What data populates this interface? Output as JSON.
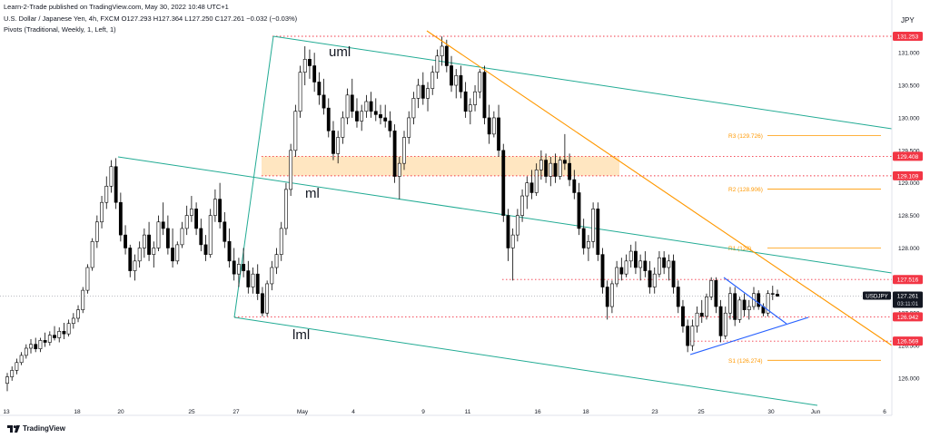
{
  "header": {
    "published": "Learn-2-Trade published on TradingView.com, May 30, 2022 10:48 UTC+1",
    "symbol": "U.S. Dollar / Japanese Yen, 4h, FXCM",
    "ohlc": "O127.293 H127.364 L127.250 C127.261",
    "change": "−0.032 (−0.03%)",
    "indicator": "Pivots (Traditional, Weekly, 1, Left, 1)"
  },
  "currency": "JPY",
  "brand": "TradingView",
  "colors": {
    "up": "#ffffff",
    "down": "#000000",
    "pitchfork": "#22ab94",
    "resistance": "#ff9800",
    "triangle": "#2962ff",
    "level": "#f23645",
    "zone": "#ffe0b2",
    "pivot": "#ff9800"
  },
  "chart_data": {
    "type": "candlestick",
    "symbol": "USDJPY",
    "ylim": [
      125.72,
      131.55
    ],
    "y_ticks": [
      "126.000",
      "126.500",
      "127.000",
      "127.500",
      "128.000",
      "128.500",
      "129.000",
      "129.500",
      "130.000",
      "130.500",
      "131.000"
    ],
    "x_ticks": [
      "13",
      "18",
      "20",
      "25",
      "27",
      "May",
      "4",
      "9",
      "11",
      "16",
      "18",
      "23",
      "25",
      "30",
      "Jun",
      "6"
    ],
    "price_tags": [
      "131.253",
      "129.408",
      "129.109",
      "127.516",
      "126.942",
      "126.569"
    ],
    "current_price": {
      "symbol": "USDJPY",
      "value": "127.261",
      "countdown": "03:11:01"
    },
    "pivots": [
      {
        "label": "R3 (129.726)",
        "value": 129.726
      },
      {
        "label": "R2 (128.906)",
        "value": 128.906
      },
      {
        "label": "R1 (128)",
        "value": 128.0
      },
      {
        "label": "S1 (126.274)",
        "value": 126.274
      }
    ],
    "pitchfork_labels": [
      "uml",
      "ml",
      "lml"
    ],
    "candles": [
      {
        "o": 125.92,
        "h": 126.08,
        "l": 125.8,
        "c": 126.02
      },
      {
        "o": 126.02,
        "h": 126.18,
        "l": 125.96,
        "c": 126.12
      },
      {
        "o": 126.12,
        "h": 126.3,
        "l": 126.06,
        "c": 126.24
      },
      {
        "o": 126.24,
        "h": 126.4,
        "l": 126.2,
        "c": 126.35
      },
      {
        "o": 126.35,
        "h": 126.52,
        "l": 126.3,
        "c": 126.46
      },
      {
        "o": 126.46,
        "h": 126.6,
        "l": 126.38,
        "c": 126.52
      },
      {
        "o": 126.52,
        "h": 126.62,
        "l": 126.4,
        "c": 126.45
      },
      {
        "o": 126.45,
        "h": 126.62,
        "l": 126.4,
        "c": 126.58
      },
      {
        "o": 126.58,
        "h": 126.7,
        "l": 126.48,
        "c": 126.55
      },
      {
        "o": 126.55,
        "h": 126.72,
        "l": 126.5,
        "c": 126.66
      },
      {
        "o": 126.66,
        "h": 126.8,
        "l": 126.58,
        "c": 126.62
      },
      {
        "o": 126.62,
        "h": 126.78,
        "l": 126.55,
        "c": 126.72
      },
      {
        "o": 126.72,
        "h": 126.85,
        "l": 126.6,
        "c": 126.68
      },
      {
        "o": 126.68,
        "h": 126.9,
        "l": 126.64,
        "c": 126.84
      },
      {
        "o": 126.84,
        "h": 127.0,
        "l": 126.76,
        "c": 126.92
      },
      {
        "o": 126.92,
        "h": 127.12,
        "l": 126.86,
        "c": 127.05
      },
      {
        "o": 127.05,
        "h": 127.4,
        "l": 127.0,
        "c": 127.35
      },
      {
        "o": 127.35,
        "h": 127.75,
        "l": 127.3,
        "c": 127.7
      },
      {
        "o": 127.7,
        "h": 128.15,
        "l": 127.65,
        "c": 128.1
      },
      {
        "o": 128.1,
        "h": 128.5,
        "l": 128.0,
        "c": 128.4
      },
      {
        "o": 128.4,
        "h": 128.8,
        "l": 128.3,
        "c": 128.7
      },
      {
        "o": 128.7,
        "h": 129.1,
        "l": 128.6,
        "c": 128.95
      },
      {
        "o": 128.95,
        "h": 129.35,
        "l": 128.85,
        "c": 129.25
      },
      {
        "o": 129.25,
        "h": 129.38,
        "l": 128.6,
        "c": 128.7
      },
      {
        "o": 128.7,
        "h": 128.85,
        "l": 128.1,
        "c": 128.2
      },
      {
        "o": 128.2,
        "h": 128.35,
        "l": 127.9,
        "c": 128.0
      },
      {
        "o": 128.0,
        "h": 128.05,
        "l": 127.55,
        "c": 127.65
      },
      {
        "o": 127.65,
        "h": 127.9,
        "l": 127.5,
        "c": 127.8
      },
      {
        "o": 127.8,
        "h": 128.1,
        "l": 127.7,
        "c": 128.0
      },
      {
        "o": 128.0,
        "h": 128.3,
        "l": 127.85,
        "c": 128.2
      },
      {
        "o": 128.2,
        "h": 128.4,
        "l": 127.8,
        "c": 127.9
      },
      {
        "o": 127.9,
        "h": 128.1,
        "l": 127.7,
        "c": 128.0
      },
      {
        "o": 128.0,
        "h": 128.5,
        "l": 127.95,
        "c": 128.4
      },
      {
        "o": 128.4,
        "h": 128.7,
        "l": 128.2,
        "c": 128.3
      },
      {
        "o": 128.3,
        "h": 128.5,
        "l": 127.9,
        "c": 128.0
      },
      {
        "o": 128.0,
        "h": 128.3,
        "l": 127.7,
        "c": 127.8
      },
      {
        "o": 127.8,
        "h": 128.1,
        "l": 127.75,
        "c": 128.05
      },
      {
        "o": 128.05,
        "h": 128.4,
        "l": 128.0,
        "c": 128.3
      },
      {
        "o": 128.3,
        "h": 128.65,
        "l": 128.2,
        "c": 128.5
      },
      {
        "o": 128.5,
        "h": 128.8,
        "l": 128.4,
        "c": 128.6
      },
      {
        "o": 128.6,
        "h": 128.7,
        "l": 128.2,
        "c": 128.3
      },
      {
        "o": 128.3,
        "h": 128.45,
        "l": 127.95,
        "c": 128.05
      },
      {
        "o": 128.05,
        "h": 128.2,
        "l": 127.8,
        "c": 127.9
      },
      {
        "o": 127.9,
        "h": 128.6,
        "l": 127.85,
        "c": 128.5
      },
      {
        "o": 128.5,
        "h": 128.9,
        "l": 128.4,
        "c": 128.75
      },
      {
        "o": 128.75,
        "h": 129.0,
        "l": 128.3,
        "c": 128.4
      },
      {
        "o": 128.4,
        "h": 128.55,
        "l": 128.0,
        "c": 128.1
      },
      {
        "o": 128.1,
        "h": 128.3,
        "l": 127.7,
        "c": 127.8
      },
      {
        "o": 127.8,
        "h": 128.0,
        "l": 127.5,
        "c": 127.6
      },
      {
        "o": 127.6,
        "h": 127.85,
        "l": 127.4,
        "c": 127.75
      },
      {
        "o": 127.75,
        "h": 128.0,
        "l": 127.55,
        "c": 127.65
      },
      {
        "o": 127.65,
        "h": 127.8,
        "l": 127.3,
        "c": 127.4
      },
      {
        "o": 127.4,
        "h": 127.7,
        "l": 127.3,
        "c": 127.6
      },
      {
        "o": 127.6,
        "h": 127.75,
        "l": 127.2,
        "c": 127.3
      },
      {
        "o": 127.3,
        "h": 127.4,
        "l": 126.95,
        "c": 127.0
      },
      {
        "o": 127.0,
        "h": 127.5,
        "l": 126.95,
        "c": 127.45
      },
      {
        "o": 127.45,
        "h": 127.8,
        "l": 127.35,
        "c": 127.7
      },
      {
        "o": 127.7,
        "h": 128.0,
        "l": 127.6,
        "c": 127.9
      },
      {
        "o": 127.9,
        "h": 128.4,
        "l": 127.8,
        "c": 128.3
      },
      {
        "o": 128.3,
        "h": 129.0,
        "l": 128.2,
        "c": 128.9
      },
      {
        "o": 128.9,
        "h": 129.6,
        "l": 128.8,
        "c": 129.5
      },
      {
        "o": 129.5,
        "h": 130.2,
        "l": 129.4,
        "c": 130.1
      },
      {
        "o": 130.1,
        "h": 130.8,
        "l": 130.0,
        "c": 130.7
      },
      {
        "o": 130.7,
        "h": 131.1,
        "l": 130.5,
        "c": 130.9
      },
      {
        "o": 130.9,
        "h": 131.05,
        "l": 130.6,
        "c": 130.8
      },
      {
        "o": 130.8,
        "h": 131.0,
        "l": 130.4,
        "c": 130.55
      },
      {
        "o": 130.55,
        "h": 130.7,
        "l": 130.2,
        "c": 130.35
      },
      {
        "o": 130.35,
        "h": 130.6,
        "l": 130.05,
        "c": 130.15
      },
      {
        "o": 130.15,
        "h": 130.3,
        "l": 129.7,
        "c": 129.8
      },
      {
        "o": 129.8,
        "h": 129.95,
        "l": 129.35,
        "c": 129.45
      },
      {
        "o": 129.45,
        "h": 129.8,
        "l": 129.3,
        "c": 129.7
      },
      {
        "o": 129.7,
        "h": 130.1,
        "l": 129.6,
        "c": 130.0
      },
      {
        "o": 130.0,
        "h": 130.45,
        "l": 129.9,
        "c": 130.35
      },
      {
        "o": 130.35,
        "h": 130.6,
        "l": 130.0,
        "c": 130.1
      },
      {
        "o": 130.1,
        "h": 130.3,
        "l": 129.85,
        "c": 129.95
      },
      {
        "o": 129.95,
        "h": 130.2,
        "l": 129.8,
        "c": 130.1
      },
      {
        "o": 130.1,
        "h": 130.35,
        "l": 130.0,
        "c": 130.25
      },
      {
        "o": 130.25,
        "h": 130.4,
        "l": 130.0,
        "c": 130.1
      },
      {
        "o": 130.1,
        "h": 130.3,
        "l": 129.95,
        "c": 130.05
      },
      {
        "o": 130.05,
        "h": 130.2,
        "l": 129.9,
        "c": 130.0
      },
      {
        "o": 130.0,
        "h": 130.2,
        "l": 129.85,
        "c": 129.95
      },
      {
        "o": 129.95,
        "h": 130.1,
        "l": 129.7,
        "c": 129.8
      },
      {
        "o": 129.8,
        "h": 129.9,
        "l": 129.0,
        "c": 129.1
      },
      {
        "o": 129.1,
        "h": 129.4,
        "l": 128.75,
        "c": 129.3
      },
      {
        "o": 129.3,
        "h": 129.8,
        "l": 129.2,
        "c": 129.7
      },
      {
        "o": 129.7,
        "h": 130.1,
        "l": 129.6,
        "c": 130.0
      },
      {
        "o": 130.0,
        "h": 130.4,
        "l": 129.9,
        "c": 130.3
      },
      {
        "o": 130.3,
        "h": 130.6,
        "l": 130.15,
        "c": 130.5
      },
      {
        "o": 130.5,
        "h": 130.7,
        "l": 130.2,
        "c": 130.3
      },
      {
        "o": 130.3,
        "h": 130.55,
        "l": 130.1,
        "c": 130.45
      },
      {
        "o": 130.45,
        "h": 130.8,
        "l": 130.35,
        "c": 130.7
      },
      {
        "o": 130.7,
        "h": 131.05,
        "l": 130.6,
        "c": 130.95
      },
      {
        "o": 130.95,
        "h": 131.25,
        "l": 130.8,
        "c": 131.1
      },
      {
        "o": 131.1,
        "h": 131.2,
        "l": 130.7,
        "c": 130.8
      },
      {
        "o": 130.8,
        "h": 130.95,
        "l": 130.4,
        "c": 130.5
      },
      {
        "o": 130.5,
        "h": 130.75,
        "l": 130.3,
        "c": 130.65
      },
      {
        "o": 130.65,
        "h": 130.8,
        "l": 130.3,
        "c": 130.4
      },
      {
        "o": 130.4,
        "h": 130.55,
        "l": 130.0,
        "c": 130.1
      },
      {
        "o": 130.1,
        "h": 130.3,
        "l": 129.9,
        "c": 130.2
      },
      {
        "o": 130.2,
        "h": 130.5,
        "l": 130.1,
        "c": 130.4
      },
      {
        "o": 130.4,
        "h": 130.75,
        "l": 130.3,
        "c": 130.7
      },
      {
        "o": 130.7,
        "h": 130.8,
        "l": 129.9,
        "c": 130.0
      },
      {
        "o": 130.0,
        "h": 130.2,
        "l": 129.6,
        "c": 129.75
      },
      {
        "o": 129.75,
        "h": 130.1,
        "l": 129.7,
        "c": 130.0
      },
      {
        "o": 130.0,
        "h": 130.2,
        "l": 129.4,
        "c": 129.5
      },
      {
        "o": 129.5,
        "h": 129.6,
        "l": 128.4,
        "c": 128.5
      },
      {
        "o": 128.5,
        "h": 128.6,
        "l": 127.8,
        "c": 128.0
      },
      {
        "o": 128.0,
        "h": 128.3,
        "l": 127.5,
        "c": 128.2
      },
      {
        "o": 128.2,
        "h": 128.6,
        "l": 128.1,
        "c": 128.5
      },
      {
        "o": 128.5,
        "h": 128.9,
        "l": 128.4,
        "c": 128.8
      },
      {
        "o": 128.8,
        "h": 129.1,
        "l": 128.6,
        "c": 129.0
      },
      {
        "o": 129.0,
        "h": 129.2,
        "l": 128.75,
        "c": 128.85
      },
      {
        "o": 128.85,
        "h": 129.3,
        "l": 128.8,
        "c": 129.2
      },
      {
        "o": 129.2,
        "h": 129.5,
        "l": 129.05,
        "c": 129.35
      },
      {
        "o": 129.35,
        "h": 129.45,
        "l": 129.0,
        "c": 129.1
      },
      {
        "o": 129.1,
        "h": 129.4,
        "l": 128.95,
        "c": 129.3
      },
      {
        "o": 129.3,
        "h": 129.45,
        "l": 129.0,
        "c": 129.1
      },
      {
        "o": 129.1,
        "h": 129.4,
        "l": 129.05,
        "c": 129.35
      },
      {
        "o": 129.35,
        "h": 129.75,
        "l": 129.2,
        "c": 129.3
      },
      {
        "o": 129.3,
        "h": 129.45,
        "l": 128.95,
        "c": 129.05
      },
      {
        "o": 129.05,
        "h": 129.2,
        "l": 128.75,
        "c": 128.85
      },
      {
        "o": 128.85,
        "h": 129.0,
        "l": 128.2,
        "c": 128.3
      },
      {
        "o": 128.3,
        "h": 128.45,
        "l": 127.9,
        "c": 128.0
      },
      {
        "o": 128.0,
        "h": 128.2,
        "l": 127.8,
        "c": 128.1
      },
      {
        "o": 128.1,
        "h": 128.7,
        "l": 128.0,
        "c": 128.6
      },
      {
        "o": 128.6,
        "h": 128.7,
        "l": 127.8,
        "c": 127.9
      },
      {
        "o": 127.9,
        "h": 128.0,
        "l": 127.3,
        "c": 127.4
      },
      {
        "o": 127.4,
        "h": 127.5,
        "l": 126.9,
        "c": 127.1
      },
      {
        "o": 127.1,
        "h": 127.5,
        "l": 127.0,
        "c": 127.45
      },
      {
        "o": 127.45,
        "h": 127.8,
        "l": 127.4,
        "c": 127.7
      },
      {
        "o": 127.7,
        "h": 127.85,
        "l": 127.5,
        "c": 127.6
      },
      {
        "o": 127.6,
        "h": 127.9,
        "l": 127.55,
        "c": 127.8
      },
      {
        "o": 127.8,
        "h": 128.05,
        "l": 127.7,
        "c": 127.95
      },
      {
        "o": 127.95,
        "h": 128.1,
        "l": 127.6,
        "c": 127.7
      },
      {
        "o": 127.7,
        "h": 127.9,
        "l": 127.5,
        "c": 127.8
      },
      {
        "o": 127.8,
        "h": 127.95,
        "l": 127.55,
        "c": 127.65
      },
      {
        "o": 127.65,
        "h": 127.8,
        "l": 127.3,
        "c": 127.4
      },
      {
        "o": 127.4,
        "h": 127.7,
        "l": 127.3,
        "c": 127.6
      },
      {
        "o": 127.6,
        "h": 127.95,
        "l": 127.55,
        "c": 127.85
      },
      {
        "o": 127.85,
        "h": 127.95,
        "l": 127.6,
        "c": 127.7
      },
      {
        "o": 127.7,
        "h": 127.9,
        "l": 127.5,
        "c": 127.8
      },
      {
        "o": 127.8,
        "h": 127.9,
        "l": 127.3,
        "c": 127.4
      },
      {
        "o": 127.4,
        "h": 127.5,
        "l": 127.0,
        "c": 127.1
      },
      {
        "o": 127.1,
        "h": 127.2,
        "l": 126.7,
        "c": 126.8
      },
      {
        "o": 126.8,
        "h": 126.9,
        "l": 126.4,
        "c": 126.5
      },
      {
        "o": 126.5,
        "h": 126.9,
        "l": 126.42,
        "c": 126.8
      },
      {
        "o": 126.8,
        "h": 127.1,
        "l": 126.7,
        "c": 127.0
      },
      {
        "o": 127.0,
        "h": 127.2,
        "l": 126.85,
        "c": 126.95
      },
      {
        "o": 126.95,
        "h": 127.3,
        "l": 126.9,
        "c": 127.25
      },
      {
        "o": 127.25,
        "h": 127.55,
        "l": 127.2,
        "c": 127.5
      },
      {
        "o": 127.5,
        "h": 127.55,
        "l": 127.0,
        "c": 127.1
      },
      {
        "o": 127.1,
        "h": 127.2,
        "l": 126.55,
        "c": 126.65
      },
      {
        "o": 126.65,
        "h": 127.1,
        "l": 126.6,
        "c": 127.0
      },
      {
        "o": 127.0,
        "h": 127.4,
        "l": 126.9,
        "c": 127.3
      },
      {
        "o": 127.3,
        "h": 127.4,
        "l": 126.8,
        "c": 126.9
      },
      {
        "o": 126.9,
        "h": 127.25,
        "l": 126.85,
        "c": 127.2
      },
      {
        "o": 127.2,
        "h": 127.3,
        "l": 126.95,
        "c": 127.05
      },
      {
        "o": 127.05,
        "h": 127.2,
        "l": 126.9,
        "c": 127.1
      },
      {
        "o": 127.1,
        "h": 127.4,
        "l": 127.05,
        "c": 127.3
      },
      {
        "o": 127.3,
        "h": 127.35,
        "l": 127.05,
        "c": 127.1
      },
      {
        "o": 127.1,
        "h": 127.15,
        "l": 126.95,
        "c": 127.0
      },
      {
        "o": 127.0,
        "h": 127.35,
        "l": 126.95,
        "c": 127.3
      },
      {
        "o": 127.3,
        "h": 127.42,
        "l": 127.2,
        "c": 127.29
      },
      {
        "o": 127.29,
        "h": 127.36,
        "l": 127.25,
        "c": 127.26
      }
    ]
  }
}
